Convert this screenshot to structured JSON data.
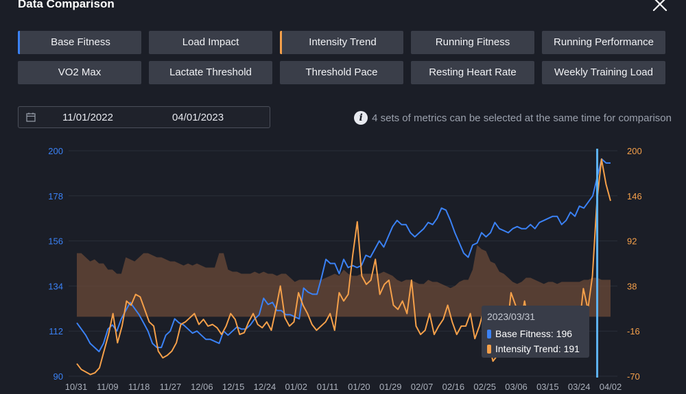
{
  "header": {
    "title": "Data Comparison",
    "close_icon": "close-icon"
  },
  "metrics": [
    {
      "label": "Base Fitness",
      "selected": "blue"
    },
    {
      "label": "Load Impact",
      "selected": ""
    },
    {
      "label": "Intensity Trend",
      "selected": "orange"
    },
    {
      "label": "Running Fitness",
      "selected": ""
    },
    {
      "label": "Running Performance",
      "selected": ""
    },
    {
      "label": "VO2 Max",
      "selected": ""
    },
    {
      "label": "Lactate Threshold",
      "selected": ""
    },
    {
      "label": "Threshold Pace",
      "selected": ""
    },
    {
      "label": "Resting Heart Rate",
      "selected": ""
    },
    {
      "label": "Weekly Training Load",
      "selected": ""
    }
  ],
  "date_range": {
    "start": "11/01/2022",
    "end": "04/01/2023",
    "icon": "calendar-icon"
  },
  "hint": {
    "text": "4 sets of metrics can be selected at the same time for comparison",
    "icon": "info-icon"
  },
  "tooltip": {
    "date": "2023/03/31",
    "rows": [
      {
        "label": "Base Fitness: 196",
        "color": "#3b82f6"
      },
      {
        "label": "Intensity Trend: 191",
        "color": "#f5a04a"
      }
    ]
  },
  "chart_data": {
    "type": "line",
    "x_ticks": [
      "10/31",
      "11/09",
      "11/18",
      "11/27",
      "12/06",
      "12/15",
      "12/24",
      "01/02",
      "01/11",
      "01/20",
      "01/29",
      "02/07",
      "02/16",
      "02/25",
      "03/06",
      "03/15",
      "03/24",
      "04/02"
    ],
    "y_left": {
      "ticks": [
        200,
        178,
        156,
        134,
        112,
        90
      ],
      "range": [
        90,
        200
      ],
      "color": "#3b82f6"
    },
    "y_right": {
      "ticks": [
        200,
        146,
        92,
        38,
        -16,
        -70
      ],
      "range": [
        -70,
        200
      ],
      "color": "#f5a04a"
    },
    "grid": "horizontal",
    "series": [
      {
        "name": "Base Fitness",
        "color": "#3b82f6",
        "axis": "left",
        "values": [
          116,
          113,
          110,
          106,
          104,
          102,
          106,
          113,
          115,
          112,
          118,
          122,
          126,
          123,
          120,
          116,
          112,
          106,
          104,
          104,
          110,
          112,
          118,
          116,
          115,
          113,
          111,
          112,
          110,
          108,
          108,
          107,
          106,
          112,
          110,
          112,
          114,
          113,
          113,
          115,
          118,
          120,
          128,
          125,
          126,
          122,
          122,
          120,
          120,
          119,
          118,
          133,
          131,
          130,
          130,
          138,
          147,
          145,
          145,
          140,
          147,
          143,
          144,
          143,
          144,
          149,
          148,
          152,
          156,
          153,
          158,
          163,
          166,
          164,
          164,
          160,
          158,
          160,
          162,
          165,
          164,
          167,
          172,
          171,
          166,
          160,
          155,
          150,
          148,
          154,
          155,
          160,
          158,
          160,
          165,
          162,
          161,
          160,
          162,
          163,
          162,
          162,
          164,
          162,
          165,
          166,
          167,
          168,
          168,
          164,
          166,
          170,
          168,
          173,
          172,
          175,
          178,
          187,
          196,
          194,
          194
        ]
      },
      {
        "name": "Intensity Trend",
        "color": "#f5a04a",
        "axis": "right",
        "values": [
          -55,
          -62,
          -65,
          -68,
          -66,
          -60,
          -40,
          -20,
          5,
          -30,
          -10,
          20,
          15,
          28,
          25,
          10,
          -5,
          -10,
          -40,
          -48,
          -45,
          -40,
          -30,
          -8,
          -5,
          0,
          5,
          -8,
          -2,
          -10,
          -8,
          -12,
          -20,
          -10,
          5,
          -2,
          -20,
          -18,
          -5,
          5,
          -8,
          -12,
          -5,
          -15,
          10,
          38,
          0,
          -10,
          -5,
          30,
          15,
          5,
          -8,
          -15,
          -10,
          -5,
          5,
          -15,
          30,
          20,
          28,
          75,
          115,
          50,
          40,
          45,
          70,
          28,
          40,
          45,
          15,
          10,
          20,
          5,
          45,
          -10,
          -20,
          -15,
          5,
          -20,
          -10,
          -2,
          15,
          -5,
          -20,
          -10,
          -10,
          5,
          -25,
          -10,
          10,
          -30,
          -52,
          -45,
          -5,
          -20,
          30,
          15,
          -10,
          20,
          -10,
          -20,
          -5,
          -30,
          -10,
          5,
          -25,
          -15,
          -10,
          -5,
          5,
          -15,
          35,
          10,
          50,
          140,
          190,
          160,
          140
        ]
      },
      {
        "name": "",
        "type": "area",
        "color": "#6b4a38",
        "axis": "left",
        "values": [
          150,
          150,
          148,
          146,
          147,
          145,
          145,
          142,
          142,
          140,
          140,
          148,
          147,
          146,
          148,
          150,
          150,
          149,
          148,
          148,
          147,
          146,
          146,
          145,
          144,
          145,
          144,
          145,
          144,
          143,
          143,
          143,
          150,
          150,
          142,
          141,
          141,
          140,
          140,
          140,
          141,
          140,
          141,
          140,
          140,
          139,
          140,
          140,
          138,
          136,
          137,
          137,
          137,
          137,
          137,
          137,
          138,
          139,
          140,
          139,
          142,
          140,
          139,
          139,
          140,
          140,
          140,
          140,
          140,
          141,
          140,
          139,
          137,
          136,
          137,
          137,
          136,
          135,
          135,
          137,
          136,
          136,
          135,
          134,
          133,
          134,
          136,
          137,
          137,
          142,
          154,
          152,
          151,
          146,
          145,
          141,
          140,
          138,
          136,
          135,
          136,
          138,
          138,
          137,
          136,
          135,
          136,
          136,
          135,
          136,
          136,
          136,
          136,
          136,
          137,
          137,
          138,
          138,
          137,
          137,
          137
        ],
        "baseline": 119
      }
    ]
  }
}
